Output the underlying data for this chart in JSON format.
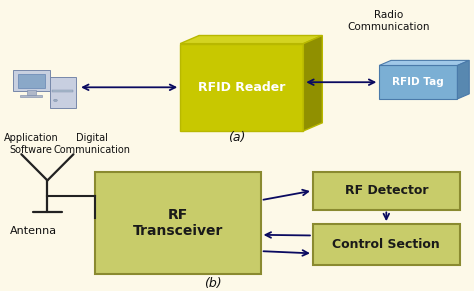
{
  "bg_color": "#fdf9e8",
  "olive_dark": "#b8b800",
  "olive_front": "#c8c800",
  "olive_top": "#d4d420",
  "olive_right": "#909000",
  "blue_tag_front": "#7bafd4",
  "blue_tag_top": "#a0c8e8",
  "blue_tag_right": "#5888b0",
  "green_box": "#c8cc6a",
  "green_box_edge": "#8a8a30",
  "arrow_color": "#0a0a60",
  "text_color": "#111111",
  "label_a": "(a)",
  "label_b": "(b)",
  "rfid_reader_label": "RFID Reader",
  "rfid_tag_label": "RFID Tag",
  "radio_comm_label": "Radio\nCommunication",
  "digital_comm_label": "Digital\nCommunication",
  "app_software_label": "Application\nSoftware",
  "rf_transceiver_label": "RF\nTransceiver",
  "rf_detector_label": "RF Detector",
  "control_section_label": "Control Section",
  "antenna_label": "Antenna"
}
